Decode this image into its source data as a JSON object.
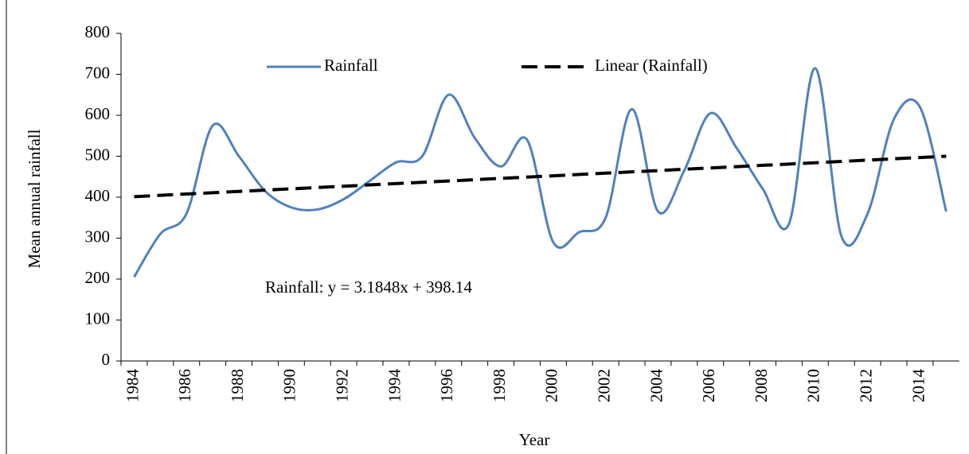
{
  "chart_data": {
    "type": "line",
    "y_label": "Mean annual rainfall",
    "x_label": "Year",
    "annotation": "Rainfall: y = 3.1848x + 398.14",
    "categories": [
      "1984",
      null,
      "1986",
      null,
      "1988",
      null,
      "1990",
      null,
      "1992",
      null,
      "1994",
      null,
      "1996",
      null,
      "1998",
      null,
      "2000",
      null,
      "2002",
      null,
      "2004",
      null,
      "2006",
      null,
      "2008",
      null,
      "2010",
      null,
      "2012",
      null,
      "2014",
      null
    ],
    "series": [
      {
        "name": "Rainfall",
        "color": "#4f81bd",
        "smooth": true,
        "values": [
          205,
          310,
          360,
          575,
          500,
          415,
          375,
          370,
          395,
          440,
          485,
          500,
          650,
          545,
          475,
          540,
          290,
          315,
          350,
          615,
          365,
          465,
          605,
          520,
          420,
          335,
          715,
          305,
          360,
          590,
          620,
          365
        ]
      },
      {
        "name": "Linear (Rainfall)",
        "color": "#000000",
        "dashed": true,
        "values": [
          401.3,
          404.5,
          407.7,
          410.9,
          414.1,
          417.2,
          420.4,
          423.6,
          426.8,
          430.0,
          433.2,
          436.4,
          439.5,
          442.7,
          445.9,
          449.1,
          452.3,
          455.5,
          458.7,
          461.8,
          465.0,
          468.2,
          471.4,
          474.6,
          477.8,
          480.9,
          484.1,
          487.3,
          490.5,
          493.7,
          496.9,
          500.1
        ]
      }
    ],
    "ylim": [
      0,
      800
    ],
    "yticks": [
      0,
      100,
      200,
      300,
      400,
      500,
      600,
      700,
      800
    ],
    "grid": false,
    "legend": "top"
  }
}
